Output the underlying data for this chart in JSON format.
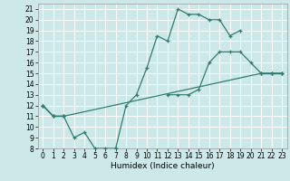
{
  "xlabel": "Humidex (Indice chaleur)",
  "bg_color": "#cce8e8",
  "grid_color": "#ffffff",
  "line_color": "#2e7d6e",
  "xlim": [
    -0.5,
    23.5
  ],
  "ylim": [
    8,
    21.5
  ],
  "xticks": [
    0,
    1,
    2,
    3,
    4,
    5,
    6,
    7,
    8,
    9,
    10,
    11,
    12,
    13,
    14,
    15,
    16,
    17,
    18,
    19,
    20,
    21,
    22,
    23
  ],
  "yticks": [
    8,
    9,
    10,
    11,
    12,
    13,
    14,
    15,
    16,
    17,
    18,
    19,
    20,
    21
  ],
  "series": [
    {
      "segments": [
        {
          "x": [
            0,
            1,
            2,
            3,
            4,
            5,
            6,
            7
          ],
          "y": [
            12,
            11,
            11,
            9,
            9.5,
            8,
            8,
            8
          ]
        },
        {
          "x": [
            12,
            13,
            14,
            15,
            16,
            17,
            18,
            19,
            20,
            21,
            22,
            23
          ],
          "y": [
            13,
            13,
            13,
            13.5,
            16,
            17,
            17,
            17,
            16,
            15,
            15,
            15
          ]
        }
      ]
    },
    {
      "segments": [
        {
          "x": [
            0,
            1,
            2
          ],
          "y": [
            12,
            11,
            11
          ]
        },
        {
          "x": [
            7,
            8,
            9,
            10,
            11,
            12,
            13,
            14,
            15,
            16,
            17,
            18,
            19
          ],
          "y": [
            8,
            12,
            13,
            15.5,
            18.5,
            18,
            21,
            20.5,
            20.5,
            20,
            20,
            18.5,
            19
          ]
        },
        {
          "x": [
            21,
            22,
            23
          ],
          "y": [
            15,
            15,
            15
          ]
        }
      ]
    },
    {
      "segments": [
        {
          "x": [
            0,
            1,
            2,
            21,
            22,
            23
          ],
          "y": [
            12,
            11,
            11,
            15,
            15,
            15
          ]
        }
      ]
    }
  ]
}
